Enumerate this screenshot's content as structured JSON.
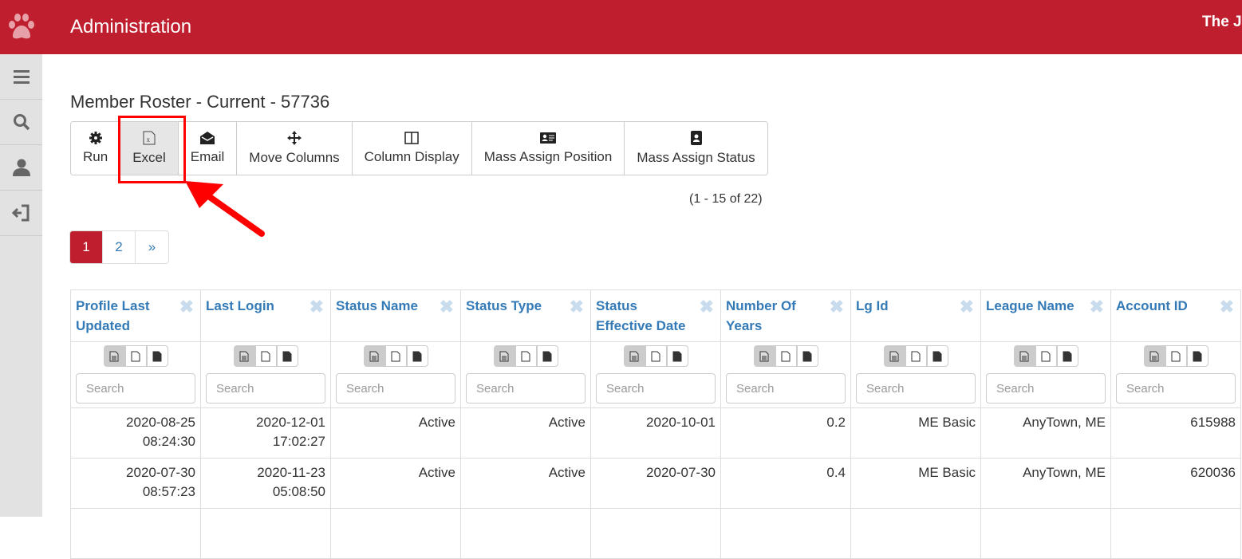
{
  "header": {
    "title": "Administration",
    "org": "The J",
    "brand_color": "#be1e2d"
  },
  "sidebar": {
    "items": [
      {
        "icon": "menu-icon"
      },
      {
        "icon": "search-icon"
      },
      {
        "icon": "user-icon"
      },
      {
        "icon": "logout-icon"
      }
    ]
  },
  "page": {
    "title": "Member Roster - Current - 57736",
    "record_count": "(1 - 15 of 22)"
  },
  "toolbar": [
    {
      "label": "Run",
      "icon": "gear-icon"
    },
    {
      "label": "Excel",
      "icon": "excel-file-icon"
    },
    {
      "label": "Email",
      "icon": "envelope-open-icon"
    },
    {
      "label": "Move Columns",
      "icon": "move-icon"
    },
    {
      "label": "Column Display",
      "icon": "columns-icon"
    },
    {
      "label": "Mass Assign Position",
      "icon": "id-card-icon"
    },
    {
      "label": "Mass Assign Status",
      "icon": "contact-book-icon"
    }
  ],
  "pagination": {
    "pages": [
      "1",
      "2",
      "»"
    ],
    "current": "1"
  },
  "table": {
    "search_placeholder": "Search",
    "columns": [
      "Profile Last Updated",
      "Last Login",
      "Status Name",
      "Status Type",
      "Status Effective Date",
      "Number Of Years",
      "Lg Id",
      "League Name",
      "Account ID"
    ],
    "rows": [
      [
        "2020-08-25 08:24:30",
        "2020-12-01 17:02:27",
        "Active",
        "Active",
        "2020-10-01",
        "0.2",
        "ME Basic",
        "AnyTown, ME",
        "615988"
      ],
      [
        "2020-07-30 08:57:23",
        "2020-11-23 05:08:50",
        "Active",
        "Active",
        "2020-07-30",
        "0.4",
        "ME Basic",
        "AnyTown, ME",
        "620036"
      ]
    ]
  }
}
